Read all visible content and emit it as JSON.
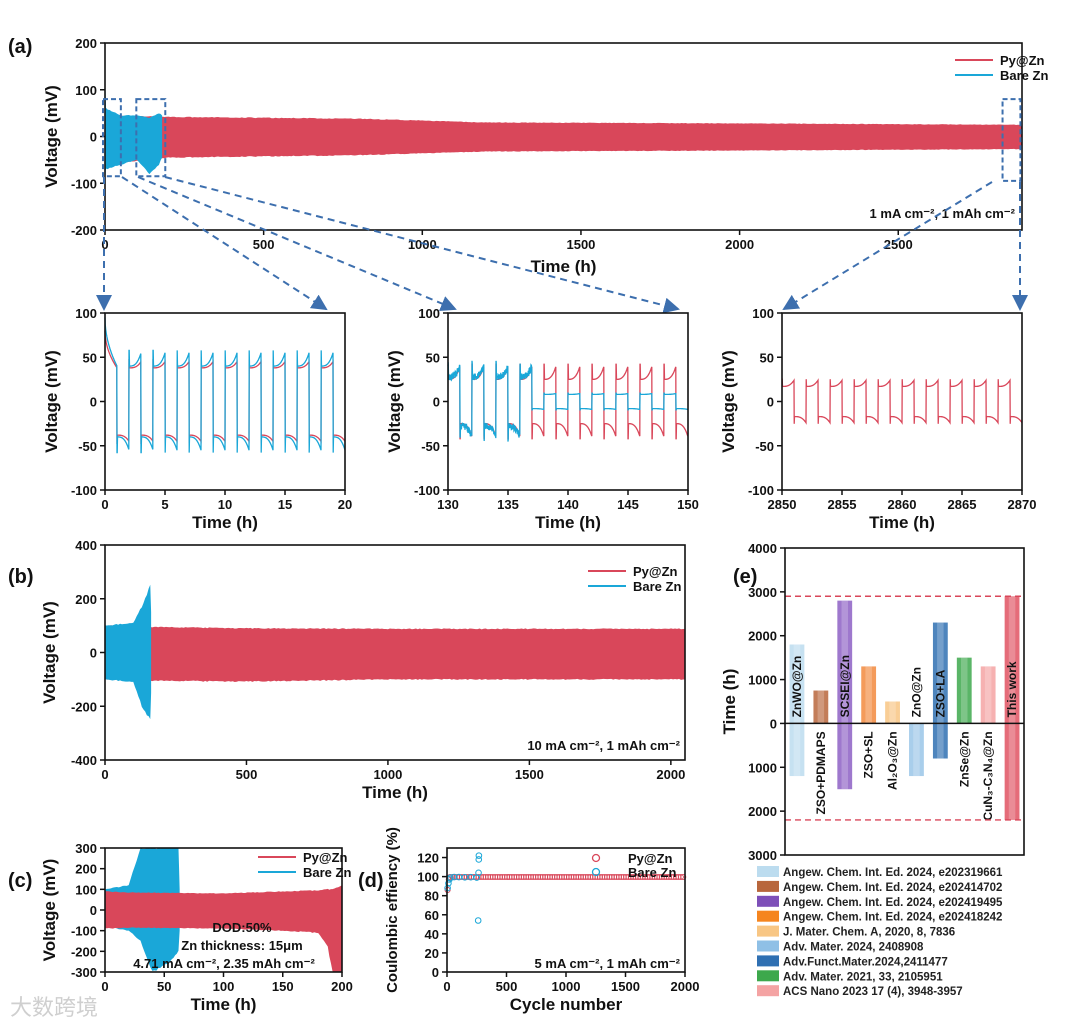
{
  "panel_labels": [
    "(a)",
    "(b)",
    "(c)",
    "(d)",
    "(e)"
  ],
  "watermark": "大数跨境",
  "colors": {
    "py_zn": "#d9475a",
    "bare_zn": "#1aa7d8",
    "zoom_box": "#3d6fae",
    "ref_line": "#d9475a"
  },
  "chart_data": [
    {
      "id": "a",
      "type": "line",
      "xlabel": "Time (h)",
      "ylabel": "Voltage (mV)",
      "xlim": [
        0,
        2890
      ],
      "ylim": [
        -200,
        200
      ],
      "xticks": [
        0,
        500,
        1000,
        1500,
        2000,
        2500
      ],
      "yticks": [
        -200,
        -100,
        0,
        100,
        200
      ],
      "legend": [
        "Py@Zn",
        "Bare Zn"
      ],
      "legend_position": "top-right",
      "annotation": "1 mA cm⁻², 1 mAh cm⁻²",
      "series": [
        {
          "name": "Py@Zn",
          "envelope": [
            [
              0,
              45,
              -60
            ],
            [
              200,
              42,
              -45
            ],
            [
              800,
              38,
              -40
            ],
            [
              1200,
              30,
              -32
            ],
            [
              2000,
              28,
              -30
            ],
            [
              2890,
              25,
              -27
            ]
          ]
        },
        {
          "name": "Bare Zn",
          "envelope": [
            [
              0,
              150,
              -100
            ],
            [
              3,
              60,
              -70
            ],
            [
              50,
              45,
              -60
            ],
            [
              100,
              45,
              -50
            ],
            [
              140,
              40,
              -80
            ],
            [
              170,
              50,
              -60
            ],
            [
              180,
              45,
              -45
            ]
          ]
        }
      ]
    },
    {
      "id": "a-inset-1",
      "type": "line",
      "xlabel": "Time (h)",
      "ylabel": "Voltage (mV)",
      "xlim": [
        0,
        20
      ],
      "ylim": [
        -100,
        100
      ],
      "xticks": [
        0,
        5,
        10,
        15,
        20
      ],
      "yticks": [
        -100,
        -50,
        0,
        50,
        100
      ],
      "series": [
        {
          "name": "Py@Zn",
          "period_h": 2,
          "plateau_mV": 38,
          "peak_mV": 45,
          "initial_mV": 80
        },
        {
          "name": "Bare Zn",
          "period_h": 2,
          "plateau_mV": 40,
          "peak_mV": 55,
          "initial_mV": 95
        }
      ]
    },
    {
      "id": "a-inset-2",
      "type": "line",
      "xlabel": "Time (h)",
      "ylabel": "Voltage (mV)",
      "xlim": [
        130,
        150
      ],
      "ylim": [
        -100,
        100
      ],
      "xticks": [
        130,
        135,
        140,
        145,
        150
      ],
      "yticks": [
        -100,
        -50,
        0,
        50,
        100
      ],
      "series": [
        {
          "name": "Py@Zn",
          "period_h": 2,
          "plateau_mV": 25,
          "peak_mV": 40
        },
        {
          "name": "Bare Zn",
          "period_h": 2,
          "plateau_mV": 28,
          "peak_mV": 40,
          "late_plateau_mV": 8,
          "transition_h": 137
        }
      ]
    },
    {
      "id": "a-inset-3",
      "type": "line",
      "xlabel": "Time (h)",
      "ylabel": "Voltage (mV)",
      "xlim": [
        2850,
        2870
      ],
      "ylim": [
        -100,
        100
      ],
      "xticks": [
        2850,
        2855,
        2860,
        2865,
        2870
      ],
      "yticks": [
        -100,
        -50,
        0,
        50,
        100
      ],
      "series": [
        {
          "name": "Py@Zn",
          "period_h": 2,
          "plateau_mV": 17,
          "peak_mV": 24
        }
      ]
    },
    {
      "id": "b",
      "type": "line",
      "xlabel": "Time (h)",
      "ylabel": "Voltage (mV)",
      "xlim": [
        0,
        2050
      ],
      "ylim": [
        -400,
        400
      ],
      "xticks": [
        0,
        500,
        1000,
        1500,
        2000
      ],
      "yticks": [
        -400,
        -200,
        0,
        200,
        400
      ],
      "legend": [
        "Py@Zn",
        "Bare Zn"
      ],
      "legend_position": "top-right",
      "annotation": "10 mA cm⁻², 1 mAh cm⁻²",
      "series": [
        {
          "name": "Py@Zn",
          "envelope": [
            [
              0,
              100,
              -100
            ],
            [
              160,
              95,
              -105
            ],
            [
              500,
              90,
              -108
            ],
            [
              1000,
              88,
              -100
            ],
            [
              2050,
              88,
              -100
            ]
          ]
        },
        {
          "name": "Bare Zn",
          "envelope": [
            [
              0,
              100,
              -100
            ],
            [
              100,
              110,
              -110
            ],
            [
              130,
              170,
              -200
            ],
            [
              160,
              250,
              -250
            ],
            [
              163,
              150,
              -150
            ]
          ]
        }
      ]
    },
    {
      "id": "c",
      "type": "line",
      "xlabel": "Time (h)",
      "ylabel": "Voltage (mV)",
      "xlim": [
        0,
        200
      ],
      "ylim": [
        -300,
        300
      ],
      "xticks": [
        0,
        50,
        100,
        150,
        200
      ],
      "yticks": [
        -300,
        -200,
        -100,
        0,
        100,
        200,
        300
      ],
      "legend": [
        "Py@Zn",
        "Bare Zn"
      ],
      "legend_position": "top-right",
      "annotations": [
        "DOD:50%",
        "Zn thickness: 15μm",
        "4.71 mA cm⁻², 2.35 mAh cm⁻²"
      ],
      "series": [
        {
          "name": "Py@Zn",
          "envelope": [
            [
              0,
              90,
              -90
            ],
            [
              20,
              85,
              -85
            ],
            [
              100,
              80,
              -90
            ],
            [
              150,
              90,
              -100
            ],
            [
              180,
              95,
              -110
            ],
            [
              188,
              100,
              -180
            ],
            [
              192,
              100,
              -300
            ],
            [
              200,
              120,
              -300
            ]
          ]
        },
        {
          "name": "Bare Zn",
          "envelope": [
            [
              0,
              100,
              -80
            ],
            [
              20,
              120,
              -100
            ],
            [
              30,
              300,
              -150
            ],
            [
              40,
              300,
              -300
            ],
            [
              55,
              300,
              -250
            ],
            [
              62,
              300,
              -200
            ],
            [
              63,
              100,
              -100
            ]
          ]
        }
      ]
    },
    {
      "id": "d",
      "type": "scatter",
      "xlabel": "Cycle number",
      "ylabel": "Coulombic effiency (%)",
      "xlim": [
        0,
        2000
      ],
      "ylim": [
        0,
        130
      ],
      "xticks": [
        0,
        500,
        1000,
        1500,
        2000
      ],
      "yticks": [
        0,
        20,
        40,
        60,
        80,
        100,
        120
      ],
      "legend": [
        "Py@Zn",
        "Bare Zn"
      ],
      "legend_position": "top-right",
      "annotation": "5 mA cm⁻², 1 mAh cm⁻²",
      "series": [
        {
          "name": "Py@Zn",
          "points": [
            [
              5,
              86
            ],
            [
              15,
              97
            ]
          ],
          "steady_ce": 99.6,
          "steady_from": 25,
          "steady_to": 2000,
          "step": 20
        },
        {
          "name": "Bare Zn",
          "points": [
            [
              5,
              88
            ],
            [
              12,
              93
            ],
            [
              20,
              97
            ],
            [
              30,
              99
            ],
            [
              60,
              99.5
            ],
            [
              100,
              99.5
            ],
            [
              150,
              99.3
            ],
            [
              200,
              99.4
            ],
            [
              250,
              99
            ],
            [
              262,
              54
            ],
            [
              265,
              104
            ],
            [
              267,
              118
            ],
            [
              268,
              122
            ]
          ]
        }
      ]
    },
    {
      "id": "e",
      "type": "bar",
      "ylabel": "Time (h)",
      "ylim": [
        -3000,
        4000
      ],
      "yticks": [
        4000,
        3000,
        2000,
        1000,
        0,
        -1000,
        -2000,
        -3000
      ],
      "yticklabels": [
        "4000",
        "3000",
        "2000",
        "1000",
        "0",
        "1000",
        "2000",
        "3000"
      ],
      "reference_lines": [
        2900,
        -2200
      ],
      "bars": [
        {
          "label": "ZnWO@Zn",
          "up": 1800,
          "down": 1200,
          "color": "#bcdcef"
        },
        {
          "label": "ZSO+PDMAPS",
          "up": 750,
          "down": 0,
          "color": "#b8663c"
        },
        {
          "label": "SCSEI@Zn",
          "up": 2800,
          "down": 1500,
          "color": "#8d60c4"
        },
        {
          "label": "ZSO+SL",
          "up": 1300,
          "down": 0,
          "color": "#f28a3e"
        },
        {
          "label": "Al₂O₃@Zn",
          "up": 500,
          "down": 0,
          "color": "#f8c684"
        },
        {
          "label": "ZnO@Zn",
          "up": 0,
          "down": 1200,
          "color": "#9ac6e8"
        },
        {
          "label": "ZSO+LA",
          "up": 2300,
          "down": 800,
          "color": "#2f70b2"
        },
        {
          "label": "ZnSe@Zn",
          "up": 1500,
          "down": 0,
          "color": "#3da84c"
        },
        {
          "label": "CuN₃-C₃N₄@Zn",
          "up": 1300,
          "down": 0,
          "color": "#f4a3a3"
        },
        {
          "label": "This work",
          "up": 2900,
          "down": 2200,
          "color": "#e05262"
        }
      ],
      "legend": [
        {
          "text": "Angew. Chem. Int. Ed. 2024, e202319661",
          "color": "#bcdcef"
        },
        {
          "text": "Angew. Chem. Int. Ed. 2024, e202414702",
          "color": "#b8663c"
        },
        {
          "text": "Angew. Chem. Int. Ed. 2024, e202419495",
          "color": "#7d4fb8"
        },
        {
          "text": "Angew. Chem. Int. Ed. 2024, e202418242",
          "color": "#f5851f"
        },
        {
          "text": "J. Mater. Chem. A, 2020, 8, 7836",
          "color": "#f8c684"
        },
        {
          "text": "Adv. Mater. 2024, 2408908",
          "color": "#8fc0e6"
        },
        {
          "text": "Adv.Funct.Mater.2024,2411477",
          "color": "#2f70b2"
        },
        {
          "text": "Adv. Mater. 2021, 33, 2105951",
          "color": "#3da84c"
        },
        {
          "text": "ACS Nano 2023 17 (4), 3948-3957",
          "color": "#f4a3a3"
        }
      ]
    }
  ]
}
